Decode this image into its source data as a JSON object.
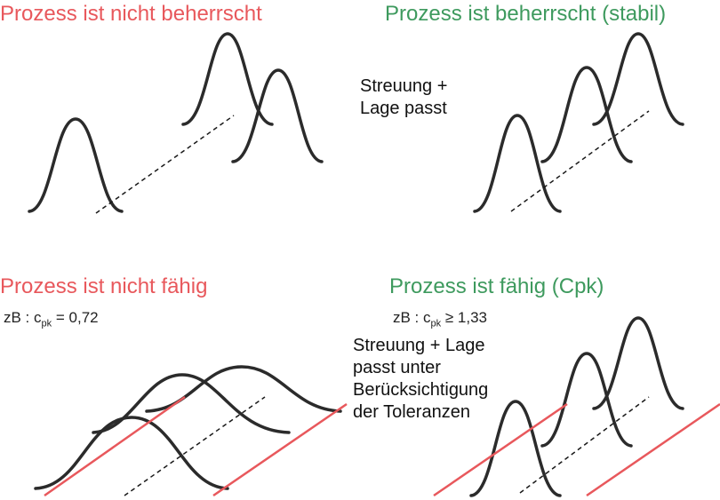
{
  "quadrants": {
    "top_left": {
      "title": "Prozess ist nicht beherrscht",
      "title_color": "#e8585c"
    },
    "top_right": {
      "title": "Prozess ist beherrscht (stabil)",
      "title_color": "#3e9a5e",
      "note_lines": [
        "Streuung +",
        "Lage passt"
      ]
    },
    "bottom_left": {
      "title": "Prozess ist nicht fähig",
      "title_color": "#e8585c",
      "formula": {
        "prefix": "zB : c",
        "sub": "pk",
        "relation": " = 0,72"
      }
    },
    "bottom_right": {
      "title": "Prozess ist fähig (Cpk)",
      "title_color": "#3e9a5e",
      "formula": {
        "prefix": "zB : c",
        "sub": "pk",
        "relation": " ≥ 1,33"
      },
      "note_lines": [
        "Streuung + Lage",
        "passt unter",
        "Berücksichtigung",
        "der Toleranzen"
      ]
    }
  },
  "colors": {
    "curve": "#2b2b2b",
    "tolerance_line": "#e8585c",
    "dashed_axis": "#1a1a1a"
  }
}
